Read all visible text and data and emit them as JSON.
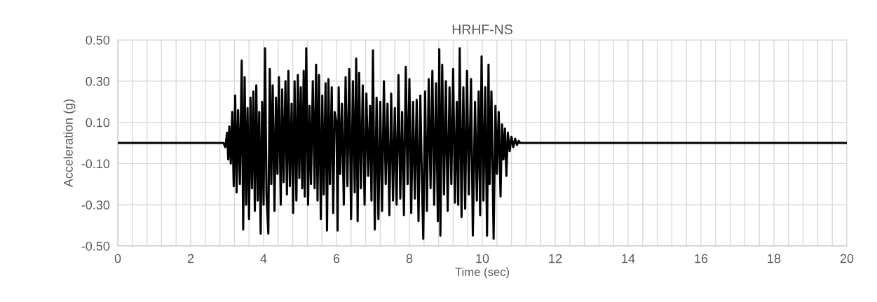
{
  "chart_data": {
    "type": "line",
    "title": "HRHF-NS",
    "xlabel": "Time (sec)",
    "ylabel": "Acceleration (g)",
    "xlim": [
      0,
      20
    ],
    "ylim": [
      -0.5,
      0.5
    ],
    "xticks": [
      0,
      {
        "value": 0.4,
        "label": null
      },
      {
        "value": 0.8,
        "label": null
      },
      {
        "value": 1.2,
        "label": null
      },
      {
        "value": 1.6,
        "label": null
      },
      2,
      {
        "value": 2.4,
        "label": null
      },
      {
        "value": 2.8,
        "label": null
      },
      {
        "value": 3.2,
        "label": null
      },
      {
        "value": 3.6,
        "label": null
      },
      4,
      {
        "value": 4.4,
        "label": null
      },
      {
        "value": 4.8,
        "label": null
      },
      {
        "value": 5.2,
        "label": null
      },
      {
        "value": 5.6,
        "label": null
      },
      6,
      {
        "value": 6.4,
        "label": null
      },
      {
        "value": 6.8,
        "label": null
      },
      {
        "value": 7.2,
        "label": null
      },
      {
        "value": 7.6,
        "label": null
      },
      8,
      {
        "value": 8.4,
        "label": null
      },
      {
        "value": 8.8,
        "label": null
      },
      {
        "value": 9.2,
        "label": null
      },
      {
        "value": 9.6,
        "label": null
      },
      10,
      {
        "value": 10.4,
        "label": null
      },
      {
        "value": 10.8,
        "label": null
      },
      {
        "value": 11.2,
        "label": null
      },
      {
        "value": 11.6,
        "label": null
      },
      12,
      {
        "value": 12.4,
        "label": null
      },
      {
        "value": 12.8,
        "label": null
      },
      {
        "value": 13.2,
        "label": null
      },
      {
        "value": 13.6,
        "label": null
      },
      14,
      {
        "value": 14.4,
        "label": null
      },
      {
        "value": 14.8,
        "label": null
      },
      {
        "value": 15.2,
        "label": null
      },
      {
        "value": 15.6,
        "label": null
      },
      16,
      {
        "value": 16.4,
        "label": null
      },
      {
        "value": 16.8,
        "label": null
      },
      {
        "value": 17.2,
        "label": null
      },
      {
        "value": 17.6,
        "label": null
      },
      18,
      {
        "value": 18.4,
        "label": null
      },
      {
        "value": 18.8,
        "label": null
      },
      {
        "value": 19.2,
        "label": null
      },
      {
        "value": 19.6,
        "label": null
      },
      20
    ],
    "yticks": [
      {
        "value": -0.5,
        "label": "-0.50"
      },
      {
        "value": -0.3,
        "label": "-0.30"
      },
      {
        "value": -0.1,
        "label": "-0.10"
      },
      {
        "value": 0.1,
        "label": "0.10"
      },
      {
        "value": 0.3,
        "label": "0.30"
      },
      {
        "value": 0.5,
        "label": "0.50"
      }
    ],
    "grid": true,
    "marker": "none",
    "line_style": "solid",
    "series": [
      {
        "color": "#000000",
        "x": [
          0,
          2.9,
          2.95,
          3.0,
          3.03,
          3.06,
          3.1,
          3.14,
          3.18,
          3.22,
          3.26,
          3.3,
          3.35,
          3.4,
          3.44,
          3.48,
          3.52,
          3.56,
          3.6,
          3.64,
          3.68,
          3.72,
          3.76,
          3.8,
          3.84,
          3.88,
          3.92,
          3.96,
          4.0,
          4.04,
          4.08,
          4.13,
          4.17,
          4.21,
          4.25,
          4.3,
          4.34,
          4.38,
          4.42,
          4.47,
          4.51,
          4.55,
          4.6,
          4.64,
          4.68,
          4.72,
          4.77,
          4.81,
          4.85,
          4.9,
          4.94,
          4.98,
          5.02,
          5.06,
          5.1,
          5.13,
          5.17,
          5.22,
          5.26,
          5.3,
          5.35,
          5.4,
          5.44,
          5.48,
          5.52,
          5.57,
          5.61,
          5.65,
          5.7,
          5.74,
          5.78,
          5.82,
          5.87,
          5.91,
          5.95,
          6.0,
          6.03,
          6.06,
          6.1,
          6.15,
          6.2,
          6.25,
          6.3,
          6.35,
          6.4,
          6.45,
          6.5,
          6.54,
          6.58,
          6.62,
          6.67,
          6.72,
          6.77,
          6.82,
          6.87,
          6.92,
          6.96,
          7.0,
          7.05,
          7.1,
          7.15,
          7.2,
          7.25,
          7.3,
          7.35,
          7.4,
          7.45,
          7.5,
          7.55,
          7.6,
          7.65,
          7.7,
          7.75,
          7.8,
          7.85,
          7.9,
          7.95,
          8.0,
          8.05,
          8.1,
          8.15,
          8.2,
          8.25,
          8.3,
          8.34,
          8.38,
          8.43,
          8.48,
          8.53,
          8.58,
          8.63,
          8.68,
          8.73,
          8.78,
          8.82,
          8.85,
          8.9,
          8.95,
          9.0,
          9.05,
          9.1,
          9.15,
          9.2,
          9.25,
          9.3,
          9.34,
          9.38,
          9.43,
          9.48,
          9.53,
          9.58,
          9.63,
          9.69,
          9.74,
          9.8,
          9.85,
          9.9,
          9.94,
          9.98,
          10.03,
          10.08,
          10.13,
          10.17,
          10.2,
          10.25,
          10.31,
          10.36,
          10.4,
          10.45,
          10.5,
          10.54,
          10.58,
          10.62,
          10.66,
          10.7,
          10.75,
          10.8,
          10.85,
          10.9,
          10.95,
          11.0,
          11.04,
          20
        ],
        "values": [
          0,
          0,
          -0.02,
          0.05,
          -0.08,
          0.08,
          -0.1,
          0.15,
          -0.21,
          0.23,
          -0.24,
          0.16,
          -0.2,
          0.4,
          -0.42,
          0.32,
          -0.3,
          0.17,
          -0.37,
          0.22,
          -0.22,
          0.25,
          -0.33,
          0.28,
          -0.28,
          0.15,
          -0.44,
          0.2,
          -0.3,
          0.46,
          -0.25,
          -0.44,
          0.36,
          -0.2,
          0.28,
          -0.33,
          0.22,
          -0.15,
          0.32,
          -0.3,
          0.26,
          -0.19,
          0.3,
          -0.25,
          0.35,
          -0.21,
          0.19,
          -0.34,
          0.3,
          -0.28,
          0.33,
          -0.17,
          0.27,
          -0.22,
          0.35,
          -0.26,
          0.46,
          -0.3,
          0.18,
          -0.2,
          0.3,
          -0.22,
          0.38,
          -0.28,
          0.33,
          -0.37,
          0.23,
          -0.25,
          0.29,
          -0.425,
          0.31,
          -0.2,
          0.27,
          -0.34,
          0.15,
          0.1,
          -0.425,
          0.27,
          -0.15,
          0.19,
          -0.3,
          0.32,
          -0.21,
          0.36,
          -0.37,
          0.3,
          -0.24,
          0.41,
          -0.38,
          0.34,
          -0.22,
          0.28,
          -0.3,
          0.24,
          -0.16,
          0.18,
          -0.28,
          0.45,
          -0.42,
          0.22,
          -0.37,
          0.2,
          -0.33,
          0.3,
          -0.2,
          0.19,
          -0.35,
          0.24,
          -0.28,
          0.17,
          -0.3,
          0.33,
          -0.27,
          0.15,
          -0.35,
          0.37,
          -0.2,
          0.31,
          -0.34,
          0.2,
          -0.27,
          0.21,
          -0.38,
          0.23,
          -0.15,
          -0.465,
          0.25,
          -0.33,
          0.31,
          -0.22,
          0.35,
          -0.3,
          0.29,
          -0.38,
          0.455,
          -0.45,
          0.38,
          -0.25,
          0.3,
          -0.33,
          0.27,
          -0.2,
          0.36,
          -0.29,
          0.2,
          -0.3,
          0.46,
          -0.36,
          0.27,
          -0.32,
          0.35,
          -0.25,
          0.31,
          -0.45,
          0.2,
          -0.28,
          0.25,
          -0.35,
          0.42,
          -0.28,
          0.27,
          -0.45,
          0.38,
          -0.2,
          0.25,
          -0.465,
          0.18,
          -0.15,
          0.15,
          -0.26,
          0.09,
          -0.08,
          0.07,
          -0.16,
          0.05,
          -0.04,
          0.03,
          -0.02,
          0.02,
          -0.01,
          0.01,
          0,
          0
        ]
      }
    ]
  }
}
